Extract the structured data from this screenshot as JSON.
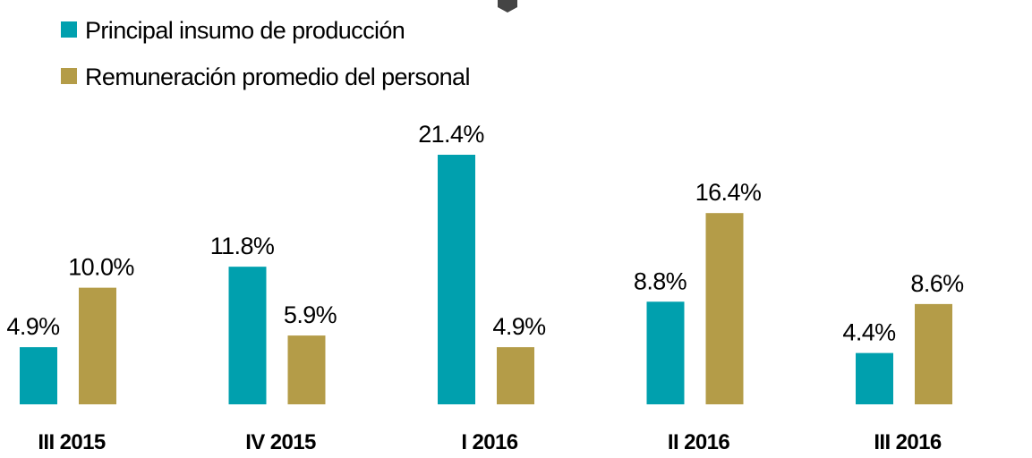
{
  "chart_data": {
    "type": "bar",
    "categories": [
      "III 2015",
      "IV 2015",
      "I 2016",
      "II 2016",
      "III 2016"
    ],
    "series": [
      {
        "name": "Principal insumo de producción",
        "color": "#00a0ae",
        "values": [
          4.9,
          11.8,
          21.4,
          8.8,
          4.4
        ],
        "value_labels": [
          "4.9%",
          "11.8%",
          "21.4%",
          "8.8%",
          "4.4%"
        ]
      },
      {
        "name": "Remuneración promedio del personal",
        "color": "#b49c48",
        "values": [
          10.0,
          5.9,
          4.9,
          16.4,
          8.6
        ],
        "value_labels": [
          "10.0%",
          "5.9%",
          "4.9%",
          "16.4%",
          "8.6%"
        ]
      }
    ],
    "legend": "top-left"
  }
}
